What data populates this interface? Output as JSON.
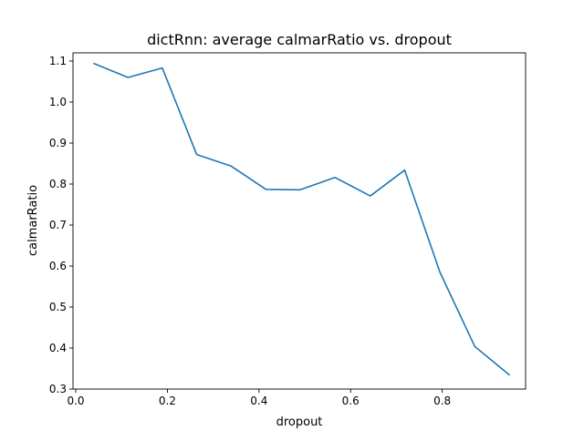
{
  "chart_data": {
    "type": "line",
    "title": "dictRnn: average calmarRatio vs. dropout",
    "xlabel": "dropout",
    "ylabel": "calmarRatio",
    "xlim": [
      -0.006,
      0.982
    ],
    "ylim": [
      0.3,
      1.12
    ],
    "xticks": [
      0.0,
      0.2,
      0.4,
      0.6,
      0.8
    ],
    "xtick_labels": [
      "0.0",
      "0.2",
      "0.4",
      "0.6",
      "0.8"
    ],
    "yticks": [
      0.3,
      0.4,
      0.5,
      0.6,
      0.7,
      0.8,
      0.9,
      1.0,
      1.1
    ],
    "ytick_labels": [
      "0.3",
      "0.4",
      "0.5",
      "0.6",
      "0.7",
      "0.8",
      "0.9",
      "1.0",
      "1.1"
    ],
    "grid": false,
    "legend": "none",
    "series": [
      {
        "color": "#1f77b4",
        "x": [
          0.04,
          0.114,
          0.189,
          0.264,
          0.339,
          0.415,
          0.49,
          0.566,
          0.643,
          0.718,
          0.795,
          0.871,
          0.946
        ],
        "y": [
          1.094,
          1.06,
          1.083,
          0.872,
          0.844,
          0.787,
          0.786,
          0.816,
          0.771,
          0.834,
          0.585,
          0.404,
          0.335
        ]
      }
    ]
  }
}
